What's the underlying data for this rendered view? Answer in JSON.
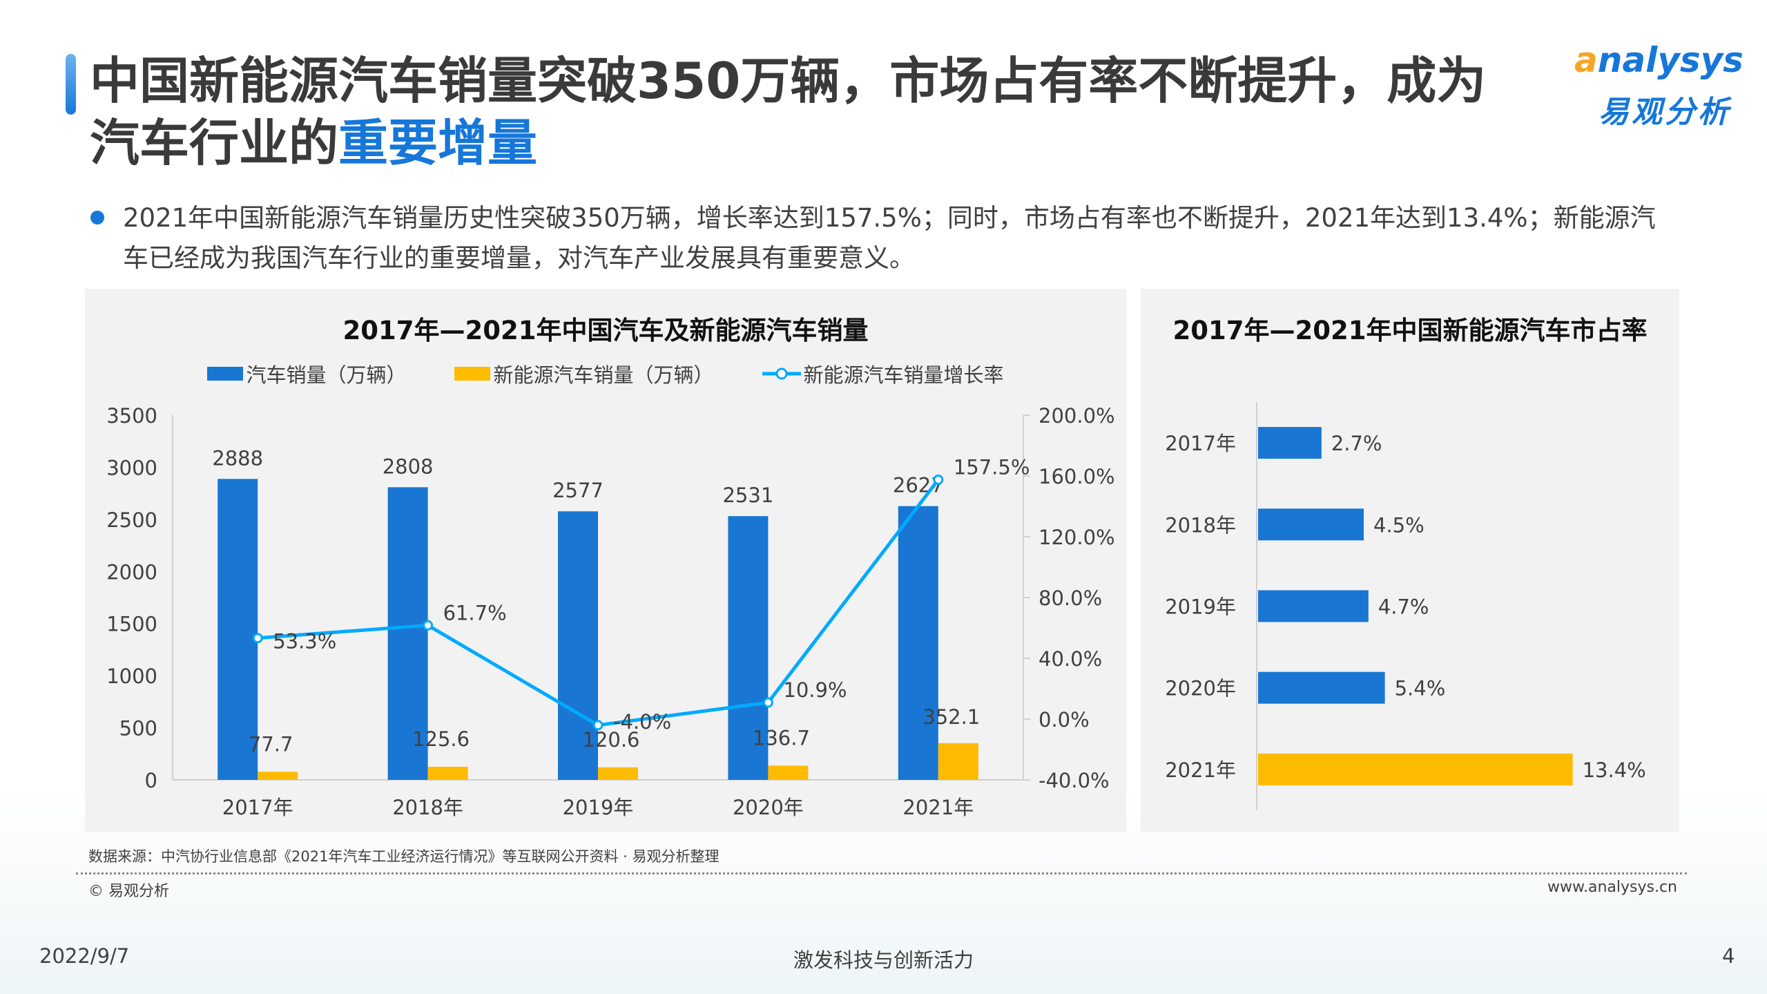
{
  "header": {
    "title_line1": "中国新能源汽车销量突破350万辆，市场占有率不断提升，成为",
    "title_line2_plain": "汽车行业的",
    "title_line2_highlight": "重要增量"
  },
  "logo": {
    "en_a": "a",
    "en_rest": "nalysys",
    "cn": "易观分析"
  },
  "bullet": "2021年中国新能源汽车销量历史性突破350万辆，增长率达到157.5%；同时，市场占有率也不断提升，2021年达到13.4%；新能源汽车已经成为我国汽车行业的重要增量，对汽车产业发展具有重要意义。",
  "colors": {
    "blue": "#1976d2",
    "yellow": "#ffbb00",
    "line": "#00aaff",
    "accent": "#1677d9"
  },
  "chart_data": [
    {
      "type": "bar+line",
      "title": "2017年—2021年中国汽车及新能源汽车销量",
      "categories": [
        "2017年",
        "2018年",
        "2019年",
        "2020年",
        "2021年"
      ],
      "series": [
        {
          "name": "汽车销量（万辆）",
          "type": "bar",
          "axis": "left",
          "values": [
            2888,
            2808,
            2577,
            2531,
            2627
          ],
          "labels": [
            "2888",
            "2808",
            "2577",
            "2531",
            "2627"
          ]
        },
        {
          "name": "新能源汽车销量（万辆）",
          "type": "bar",
          "axis": "left",
          "values": [
            77.7,
            125.6,
            120.6,
            136.7,
            352.1
          ],
          "labels": [
            "77.7",
            "125.6",
            "120.6",
            "136.7",
            "352.1"
          ]
        },
        {
          "name": "新能源汽车销量增长率",
          "type": "line",
          "axis": "right",
          "values": [
            53.3,
            61.7,
            -4.0,
            10.9,
            157.5
          ],
          "labels": [
            "53.3%",
            "61.7%",
            "-4.0%",
            "10.9%",
            "157.5%"
          ]
        }
      ],
      "ylim": [
        0,
        3500
      ],
      "yticks": [
        "0",
        "500",
        "1000",
        "1500",
        "2000",
        "2500",
        "3000",
        "3500"
      ],
      "y2lim": [
        -40,
        200
      ],
      "y2ticks": [
        "-40.0%",
        "0.0%",
        "40.0%",
        "80.0%",
        "120.0%",
        "160.0%",
        "200.0%"
      ],
      "legend": "top",
      "grid": false
    },
    {
      "type": "bar",
      "orientation": "horizontal",
      "title": "2017年—2021年中国新能源汽车市占率",
      "categories": [
        "2017年",
        "2018年",
        "2019年",
        "2020年",
        "2021年"
      ],
      "values": [
        2.7,
        4.5,
        4.7,
        5.4,
        13.4
      ],
      "labels": [
        "2.7%",
        "4.5%",
        "4.7%",
        "5.4%",
        "13.4%"
      ],
      "highlight_last": true
    }
  ],
  "footer": {
    "source": "数据来源：中汽协行业信息部《2021年汽车工业经济运行情况》等互联网公开资料 · 易观分析整理",
    "copyright": "© 易观分析",
    "url": "www.analysys.cn",
    "date": "2022/9/7",
    "slogan": "激发科技与创新活力",
    "page": "4"
  }
}
